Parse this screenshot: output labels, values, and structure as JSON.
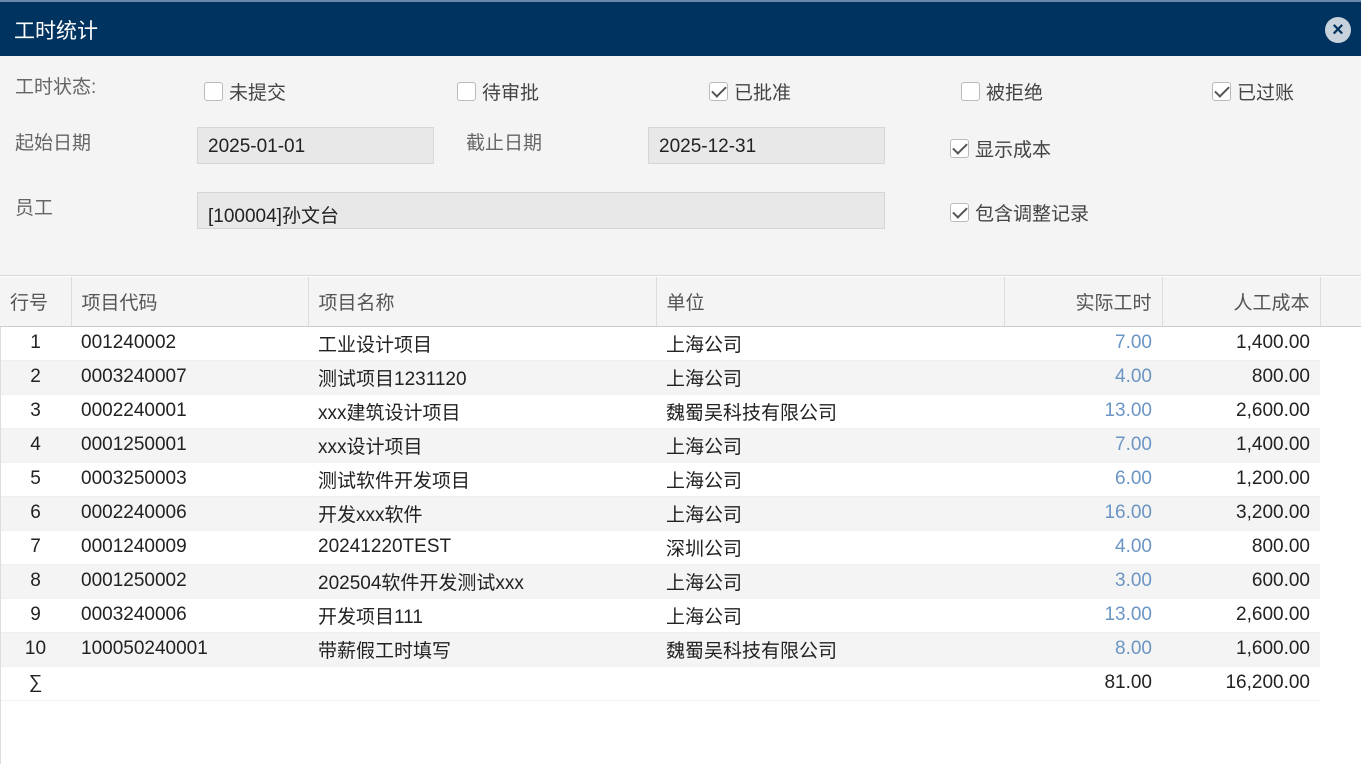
{
  "title": "工时统计",
  "filters": {
    "status_label": "工时状态:",
    "statuses": [
      {
        "label": "未提交",
        "checked": false
      },
      {
        "label": "待审批",
        "checked": false
      },
      {
        "label": "已批准",
        "checked": true
      },
      {
        "label": "被拒绝",
        "checked": false
      },
      {
        "label": "已过账",
        "checked": true
      }
    ],
    "start_label": "起始日期",
    "start_value": "2025-01-01",
    "end_label": "截止日期",
    "end_value": "2025-12-31",
    "employee_label": "员工",
    "employee_value": "[100004]孙文台",
    "show_cost": {
      "label": "显示成本",
      "checked": true
    },
    "include_adjust": {
      "label": "包含调整记录",
      "checked": true
    }
  },
  "table": {
    "headers": [
      "行号",
      "项目代码",
      "项目名称",
      "单位",
      "实际工时",
      "人工成本"
    ],
    "rows": [
      [
        "1",
        "001240002",
        "工业设计项目",
        "上海公司",
        "7.00",
        "1,400.00"
      ],
      [
        "2",
        "0003240007",
        "测试项目1231120",
        "上海公司",
        "4.00",
        "800.00"
      ],
      [
        "3",
        "0002240001",
        "xxx建筑设计项目",
        "魏蜀吴科技有限公司",
        "13.00",
        "2,600.00"
      ],
      [
        "4",
        "0001250001",
        "xxx设计项目",
        "上海公司",
        "7.00",
        "1,400.00"
      ],
      [
        "5",
        "0003250003",
        "测试软件开发项目",
        "上海公司",
        "6.00",
        "1,200.00"
      ],
      [
        "6",
        "0002240006",
        "开发xxx软件",
        "上海公司",
        "16.00",
        "3,200.00"
      ],
      [
        "7",
        "0001240009",
        "20241220TEST",
        "深圳公司",
        "4.00",
        "800.00"
      ],
      [
        "8",
        "0001250002",
        "202504软件开发测试xxx",
        "上海公司",
        "3.00",
        "600.00"
      ],
      [
        "9",
        "0003240006",
        "开发项目111",
        "上海公司",
        "13.00",
        "2,600.00"
      ],
      [
        "10",
        "100050240001",
        "带薪假工时填写",
        "魏蜀吴科技有限公司",
        "8.00",
        "1,600.00"
      ]
    ],
    "total": {
      "symbol": "∑",
      "hours": "81.00",
      "cost": "16,200.00"
    }
  }
}
